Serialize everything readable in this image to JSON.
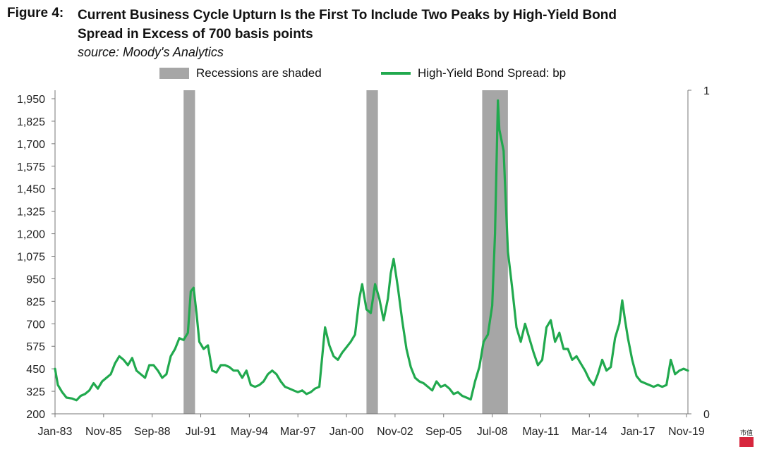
{
  "figure": {
    "label": "Figure 4:",
    "title_line1": "Current Business Cycle Upturn Is the First To Include Two Peaks by High-Yield Bond",
    "title_line2": "Spread in Excess of 700 basis points",
    "source": "source: Moody's Analytics"
  },
  "chart_data": {
    "type": "line",
    "title": "Current Business Cycle Upturn Is the First To Include Two Peaks by High-Yield Bond Spread in Excess of 700 basis points",
    "legend": [
      "Recessions are shaded",
      "High-Yield Bond Spread: bp"
    ],
    "legend_position": "top",
    "y_left": {
      "min": 200,
      "max": 1950,
      "ticks": [
        "200",
        "325",
        "450",
        "575",
        "700",
        "825",
        "950",
        "1,075",
        "1,200",
        "1,325",
        "1,450",
        "1,575",
        "1,700",
        "1,825",
        "1,950"
      ]
    },
    "y_right": {
      "min": 0,
      "max": 1,
      "ticks": [
        "0",
        "1"
      ]
    },
    "x_ticks": [
      "Jan-83",
      "Nov-85",
      "Sep-88",
      "Jul-91",
      "May-94",
      "Mar-97",
      "Jan-00",
      "Nov-02",
      "Sep-05",
      "Jul-08",
      "May-11",
      "Mar-14",
      "Jan-17",
      "Nov-19"
    ],
    "x_range": [
      "Jan-83",
      "Dec-19"
    ],
    "grid": false,
    "recessions": [
      {
        "start": "Jul-90",
        "end": "Mar-91"
      },
      {
        "start": "Mar-01",
        "end": "Nov-01"
      },
      {
        "start": "Dec-07",
        "end": "Jun-09"
      }
    ],
    "series": [
      {
        "name": "High-Yield Bond Spread: bp",
        "color": "#21a94e",
        "points": [
          [
            "1983-01",
            450
          ],
          [
            "1983-03",
            360
          ],
          [
            "1983-06",
            320
          ],
          [
            "1983-09",
            290
          ],
          [
            "1984-01",
            285
          ],
          [
            "1984-04",
            275
          ],
          [
            "1984-07",
            300
          ],
          [
            "1984-10",
            310
          ],
          [
            "1985-01",
            330
          ],
          [
            "1985-04",
            370
          ],
          [
            "1985-07",
            340
          ],
          [
            "1985-10",
            380
          ],
          [
            "1986-01",
            400
          ],
          [
            "1986-04",
            420
          ],
          [
            "1986-07",
            480
          ],
          [
            "1986-10",
            520
          ],
          [
            "1987-01",
            500
          ],
          [
            "1987-04",
            470
          ],
          [
            "1987-07",
            510
          ],
          [
            "1987-10",
            440
          ],
          [
            "1988-01",
            420
          ],
          [
            "1988-04",
            400
          ],
          [
            "1988-07",
            470
          ],
          [
            "1988-10",
            470
          ],
          [
            "1989-01",
            440
          ],
          [
            "1989-04",
            400
          ],
          [
            "1989-07",
            420
          ],
          [
            "1989-10",
            520
          ],
          [
            "1990-01",
            560
          ],
          [
            "1990-04",
            620
          ],
          [
            "1990-07",
            610
          ],
          [
            "1990-10",
            650
          ],
          [
            "1990-12",
            880
          ],
          [
            "1991-02",
            900
          ],
          [
            "1991-04",
            760
          ],
          [
            "1991-06",
            600
          ],
          [
            "1991-09",
            560
          ],
          [
            "1991-12",
            580
          ],
          [
            "1992-03",
            440
          ],
          [
            "1992-06",
            430
          ],
          [
            "1992-09",
            470
          ],
          [
            "1992-12",
            470
          ],
          [
            "1993-03",
            460
          ],
          [
            "1993-06",
            440
          ],
          [
            "1993-09",
            440
          ],
          [
            "1993-12",
            400
          ],
          [
            "1994-03",
            440
          ],
          [
            "1994-06",
            360
          ],
          [
            "1994-09",
            350
          ],
          [
            "1994-12",
            360
          ],
          [
            "1995-03",
            380
          ],
          [
            "1995-06",
            420
          ],
          [
            "1995-09",
            440
          ],
          [
            "1995-12",
            420
          ],
          [
            "1996-03",
            380
          ],
          [
            "1996-06",
            350
          ],
          [
            "1996-09",
            340
          ],
          [
            "1996-12",
            330
          ],
          [
            "1997-03",
            320
          ],
          [
            "1997-06",
            330
          ],
          [
            "1997-09",
            310
          ],
          [
            "1997-12",
            320
          ],
          [
            "1998-03",
            340
          ],
          [
            "1998-06",
            350
          ],
          [
            "1998-09",
            600
          ],
          [
            "1998-10",
            680
          ],
          [
            "1999-01",
            580
          ],
          [
            "1999-04",
            520
          ],
          [
            "1999-07",
            500
          ],
          [
            "1999-10",
            540
          ],
          [
            "2000-01",
            570
          ],
          [
            "2000-04",
            600
          ],
          [
            "2000-07",
            640
          ],
          [
            "2000-10",
            840
          ],
          [
            "2000-12",
            920
          ],
          [
            "2001-03",
            780
          ],
          [
            "2001-06",
            760
          ],
          [
            "2001-09",
            920
          ],
          [
            "2001-12",
            840
          ],
          [
            "2002-03",
            720
          ],
          [
            "2002-06",
            840
          ],
          [
            "2002-08",
            980
          ],
          [
            "2002-10",
            1060
          ],
          [
            "2003-01",
            900
          ],
          [
            "2003-04",
            720
          ],
          [
            "2003-07",
            560
          ],
          [
            "2003-10",
            460
          ],
          [
            "2004-01",
            400
          ],
          [
            "2004-04",
            380
          ],
          [
            "2004-07",
            370
          ],
          [
            "2004-10",
            350
          ],
          [
            "2005-01",
            330
          ],
          [
            "2005-04",
            380
          ],
          [
            "2005-07",
            350
          ],
          [
            "2005-10",
            360
          ],
          [
            "2006-01",
            340
          ],
          [
            "2006-04",
            310
          ],
          [
            "2006-07",
            320
          ],
          [
            "2006-10",
            300
          ],
          [
            "2007-01",
            290
          ],
          [
            "2007-04",
            280
          ],
          [
            "2007-07",
            380
          ],
          [
            "2007-10",
            460
          ],
          [
            "2008-01",
            600
          ],
          [
            "2008-04",
            640
          ],
          [
            "2008-07",
            800
          ],
          [
            "2008-09",
            1200
          ],
          [
            "2008-11",
            1940
          ],
          [
            "2008-12",
            1780
          ],
          [
            "2009-03",
            1660
          ],
          [
            "2009-06",
            1100
          ],
          [
            "2009-09",
            900
          ],
          [
            "2009-12",
            680
          ],
          [
            "2010-03",
            600
          ],
          [
            "2010-06",
            700
          ],
          [
            "2010-09",
            620
          ],
          [
            "2010-12",
            540
          ],
          [
            "2011-03",
            470
          ],
          [
            "2011-06",
            500
          ],
          [
            "2011-09",
            680
          ],
          [
            "2011-12",
            720
          ],
          [
            "2012-03",
            600
          ],
          [
            "2012-06",
            650
          ],
          [
            "2012-09",
            560
          ],
          [
            "2012-12",
            560
          ],
          [
            "2013-03",
            500
          ],
          [
            "2013-06",
            520
          ],
          [
            "2013-09",
            480
          ],
          [
            "2013-12",
            440
          ],
          [
            "2014-03",
            390
          ],
          [
            "2014-06",
            360
          ],
          [
            "2014-09",
            420
          ],
          [
            "2014-12",
            500
          ],
          [
            "2015-03",
            440
          ],
          [
            "2015-06",
            460
          ],
          [
            "2015-09",
            620
          ],
          [
            "2015-12",
            700
          ],
          [
            "2016-02",
            830
          ],
          [
            "2016-04",
            720
          ],
          [
            "2016-06",
            620
          ],
          [
            "2016-09",
            500
          ],
          [
            "2016-12",
            410
          ],
          [
            "2017-03",
            380
          ],
          [
            "2017-06",
            370
          ],
          [
            "2017-09",
            360
          ],
          [
            "2017-12",
            350
          ],
          [
            "2018-03",
            360
          ],
          [
            "2018-06",
            350
          ],
          [
            "2018-09",
            360
          ],
          [
            "2018-12",
            500
          ],
          [
            "2019-03",
            420
          ],
          [
            "2019-06",
            440
          ],
          [
            "2019-09",
            450
          ],
          [
            "2019-12",
            440
          ]
        ]
      }
    ]
  }
}
